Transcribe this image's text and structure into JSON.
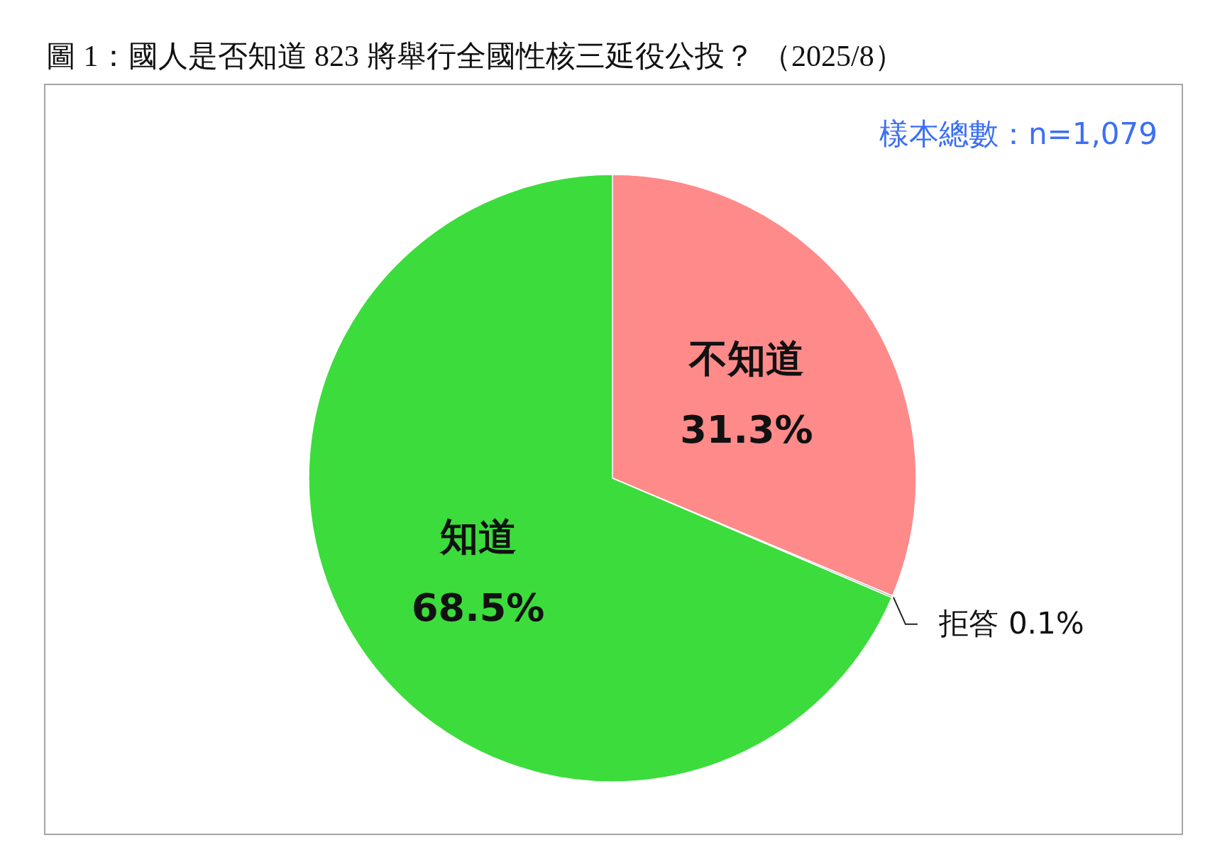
{
  "chart_data": {
    "type": "pie",
    "title": "圖 1：國人是否知道 823 將舉行全國性核三延役公投？ （2025/8）",
    "categories": [
      "不知道",
      "拒答",
      "知道"
    ],
    "values": [
      31.3,
      0.1,
      68.5
    ],
    "colors": [
      "#ff8a8a",
      "#a6a6a6",
      "#3cdc3c"
    ],
    "value_labels": [
      "31.3%",
      "0.1%",
      "68.5%"
    ],
    "annotations": [
      "樣本總數：n=1,079"
    ]
  }
}
